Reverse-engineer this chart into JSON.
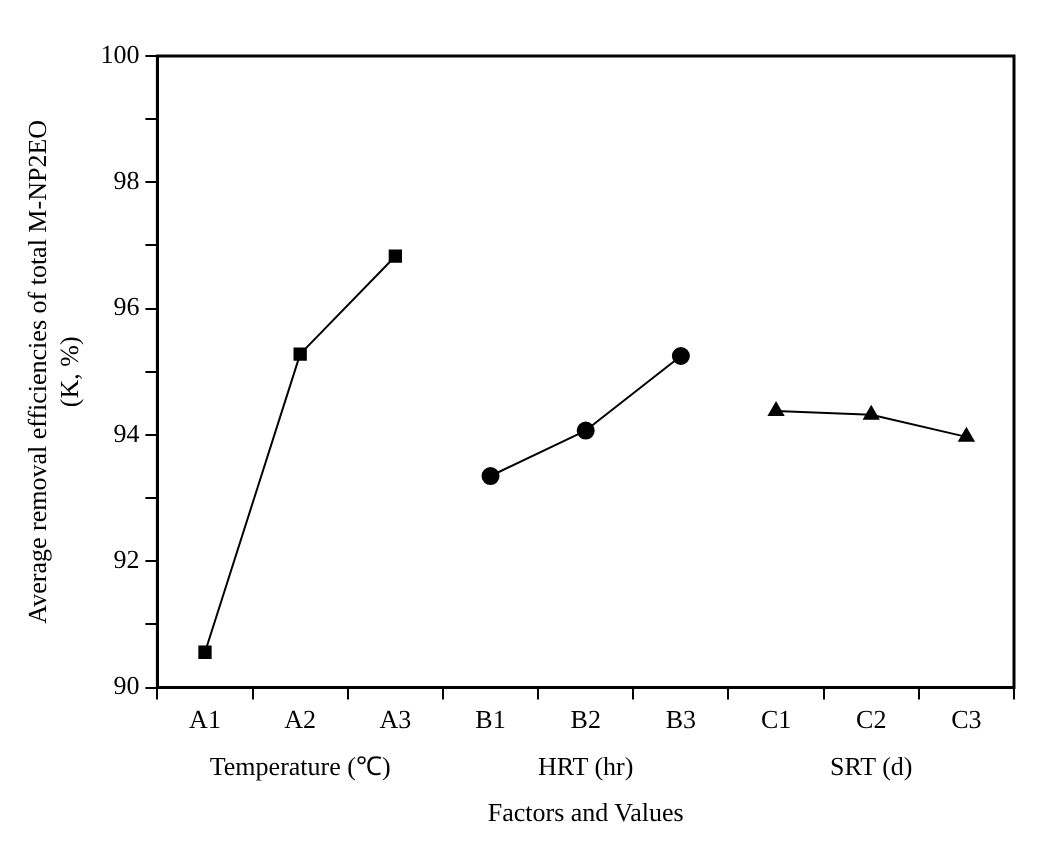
{
  "chart_data": {
    "type": "line",
    "xlabel": "Factors and Values",
    "ylabel": "Average removal efficiencies of total M-NP2EO\n(K, %)",
    "categories": [
      "A1",
      "A2",
      "A3",
      "B1",
      "B2",
      "B3",
      "C1",
      "C2",
      "C3"
    ],
    "series": [
      {
        "color": "#000000",
        "marker": "square",
        "values": [
          90.56,
          95.28,
          96.83,
          null,
          null,
          null,
          null,
          null,
          null
        ]
      },
      {
        "color": "#000000",
        "marker": "circle",
        "values": [
          null,
          null,
          null,
          93.35,
          94.07,
          95.25,
          null,
          null,
          null
        ]
      },
      {
        "color": "#000000",
        "marker": "triangle",
        "values": [
          null,
          null,
          null,
          null,
          null,
          null,
          94.38,
          94.32,
          93.97
        ]
      }
    ],
    "annotations": [
      "Temperature (℃)",
      "HRT (hr)",
      "SRT (d)"
    ],
    "ylim": [
      90,
      100
    ],
    "yticks": [
      90,
      {
        "value": 91,
        "label": null
      },
      92,
      {
        "value": 93,
        "label": null
      },
      94,
      {
        "value": 95,
        "label": null
      },
      96,
      {
        "value": 97,
        "label": null
      },
      98,
      {
        "value": 99,
        "label": null
      },
      100
    ],
    "grid": false,
    "legend": false,
    "line_style": "solid"
  }
}
